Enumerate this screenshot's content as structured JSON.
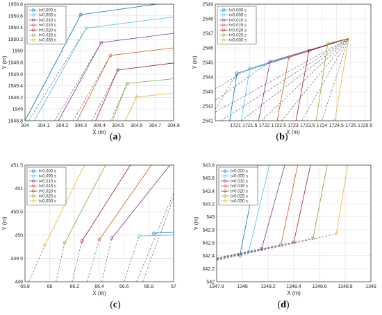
{
  "colors": [
    "#0072BD",
    "#4DBEEE",
    "#7E2F8E",
    "#D95319",
    "#A2142F",
    "#77AC30",
    "#EDB120"
  ],
  "legend": [
    "t=0.000 s",
    "t=0.005 s",
    "t=0.010 s",
    "t=0.015 s",
    "t=0.020 s",
    "t=0.025 s",
    "t=0.030 s"
  ],
  "captions": {
    "a": "a",
    "b": "b",
    "c": "c",
    "d": "d"
  },
  "chart_data": [
    {
      "id": "a",
      "type": "line",
      "title": "",
      "xlabel": "X (m)",
      "ylabel": "Y (m)",
      "xlim": [
        304,
        304.8
      ],
      "ylim": [
        1948.8,
        1950.8
      ],
      "xticks": [
        "304",
        "304.1",
        "304.2",
        "304.3",
        "304.4",
        "304.5",
        "304.6",
        "304.7",
        "304.8"
      ],
      "yticks": [
        "1948.8",
        "1949",
        "1949.2",
        "1949.4",
        "1949.6",
        "1949.8",
        "1950",
        "1950.2",
        "1950.4",
        "1950.6",
        "1950.8"
      ],
      "grid": true,
      "legend_position": "top-left",
      "series": [
        {
          "label": "t=0.000 s",
          "points": [
            [
              304.0,
              1948.8
            ],
            [
              304.3,
              1950.62
            ],
            [
              304.8,
              1950.84
            ]
          ]
        },
        {
          "label": "t=0.005 s",
          "points": [
            [
              304.05,
              1948.8
            ],
            [
              304.33,
              1950.39
            ],
            [
              304.8,
              1950.58
            ]
          ]
        },
        {
          "label": "t=0.010 s",
          "points": [
            [
              304.18,
              1948.8
            ],
            [
              304.41,
              1950.14
            ],
            [
              304.8,
              1950.3
            ]
          ]
        },
        {
          "label": "t=0.015 s",
          "points": [
            [
              304.28,
              1948.8
            ],
            [
              304.46,
              1949.92
            ],
            [
              304.8,
              1950.05
            ]
          ]
        },
        {
          "label": "t=0.020 s",
          "points": [
            [
              304.38,
              1948.8
            ],
            [
              304.5,
              1949.67
            ],
            [
              304.8,
              1949.79
            ]
          ]
        },
        {
          "label": "t=0.025 s",
          "points": [
            [
              304.47,
              1948.8
            ],
            [
              304.55,
              1949.44
            ],
            [
              304.8,
              1949.52
            ]
          ]
        },
        {
          "label": "t=0.030 s",
          "points": [
            [
              304.54,
              1948.8
            ],
            [
              304.6,
              1949.21
            ],
            [
              304.8,
              1949.27
            ]
          ]
        }
      ],
      "dashed": [
        [
          [
            304.0,
            1948.8
          ],
          [
            304.3,
            1950.62
          ]
        ],
        [
          [
            304.02,
            1948.8
          ],
          [
            304.33,
            1950.39
          ]
        ],
        [
          [
            304.16,
            1948.8
          ],
          [
            304.41,
            1950.14
          ]
        ],
        [
          [
            304.26,
            1948.8
          ],
          [
            304.46,
            1949.92
          ]
        ],
        [
          [
            304.36,
            1948.8
          ],
          [
            304.5,
            1949.67
          ]
        ],
        [
          [
            304.46,
            1948.8
          ],
          [
            304.55,
            1949.44
          ]
        ],
        [
          [
            304.54,
            1948.8
          ],
          [
            304.6,
            1949.21
          ]
        ]
      ]
    },
    {
      "id": "b",
      "type": "line",
      "title": "",
      "xlabel": "X (m)",
      "ylabel": "Y (m)",
      "xlim": [
        1720.3,
        1725.7
      ],
      "ylim": [
        2541,
        2549
      ],
      "xticks": [
        "1721",
        "1721.5",
        "1722",
        "1722.5",
        "1723",
        "1723.5",
        "1724",
        "1724.5",
        "1725",
        "1725.5"
      ],
      "yticks": [
        "2541",
        "2542",
        "2543",
        "2544",
        "2545",
        "2546",
        "2547",
        "2548",
        "2549"
      ],
      "grid": true,
      "legend_position": "top-left",
      "series": [
        {
          "label": "t=0.000 s",
          "points": [
            [
              1720.8,
              2541.0
            ],
            [
              1721.05,
              2544.25
            ],
            [
              1724.93,
              2546.65
            ]
          ]
        },
        {
          "label": "t=0.005 s",
          "points": [
            [
              1721.2,
              2541.0
            ],
            [
              1721.5,
              2544.6
            ],
            [
              1724.93,
              2546.65
            ]
          ]
        },
        {
          "label": "t=0.010 s",
          "points": [
            [
              1721.8,
              2541.0
            ],
            [
              1722.2,
              2545.05
            ],
            [
              1724.93,
              2546.65
            ]
          ]
        },
        {
          "label": "t=0.015 s",
          "points": [
            [
              1722.45,
              2541.0
            ],
            [
              1722.85,
              2545.35
            ],
            [
              1724.93,
              2546.65
            ]
          ]
        },
        {
          "label": "t=0.020 s",
          "points": [
            [
              1723.1,
              2541.0
            ],
            [
              1723.55,
              2545.8
            ],
            [
              1724.93,
              2546.65
            ]
          ]
        },
        {
          "label": "t=0.025 s",
          "points": [
            [
              1723.8,
              2541.0
            ],
            [
              1724.2,
              2546.3
            ],
            [
              1724.93,
              2546.65
            ]
          ]
        },
        {
          "label": "t=0.030 s",
          "points": [
            [
              1724.45,
              2541.0
            ],
            [
              1724.93,
              2546.65
            ]
          ]
        }
      ],
      "dashed": [
        [
          [
            1720.3,
            2541.8
          ],
          [
            1721.05,
            2544.25
          ]
        ],
        [
          [
            1720.3,
            2541.6
          ],
          [
            1724.93,
            2546.65
          ]
        ],
        [
          [
            1720.5,
            2541.0
          ],
          [
            1724.93,
            2546.65
          ]
        ],
        [
          [
            1721.2,
            2541.0
          ],
          [
            1724.93,
            2546.65
          ]
        ],
        [
          [
            1721.9,
            2541.0
          ],
          [
            1724.93,
            2546.65
          ]
        ],
        [
          [
            1722.6,
            2541.0
          ],
          [
            1724.93,
            2546.65
          ]
        ],
        [
          [
            1723.3,
            2541.0
          ],
          [
            1724.93,
            2546.65
          ]
        ],
        [
          [
            1724.0,
            2541.0
          ],
          [
            1724.93,
            2546.65
          ]
        ],
        [
          [
            1720.3,
            2542.4
          ],
          [
            1722.2,
            2545.05
          ]
        ],
        [
          [
            1720.3,
            2543.2
          ],
          [
            1721.5,
            2544.6
          ]
        ]
      ]
    },
    {
      "id": "c",
      "type": "line",
      "title": "",
      "xlabel": "X (m)",
      "ylabel": "Y (m)",
      "xlim": [
        65.8,
        67
      ],
      "ylim": [
        449,
        451.5
      ],
      "xticks": [
        "65.8",
        "66",
        "66.2",
        "66.4",
        "66.6",
        "66.8",
        "67"
      ],
      "yticks": [
        "449",
        "449.5",
        "450",
        "450.5",
        "451",
        "451.5"
      ],
      "grid": true,
      "legend_position": "top-left",
      "series": [
        {
          "label": "t=0.000 s",
          "points": [
            [
              66.84,
              450.04
            ],
            [
              67.0,
              450.06
            ]
          ]
        },
        {
          "label": "t=0.005 s",
          "points": [
            [
              66.72,
              449.98
            ],
            [
              67.0,
              450.0
            ]
          ]
        },
        {
          "label": "t=0.010 s",
          "points": [
            [
              66.5,
              449.93
            ],
            [
              66.97,
              451.5
            ]
          ]
        },
        {
          "label": "t=0.015 s",
          "points": [
            [
              66.4,
              449.9
            ],
            [
              66.82,
              451.5
            ]
          ]
        },
        {
          "label": "t=0.020 s",
          "points": [
            [
              66.26,
              449.87
            ],
            [
              66.65,
              451.5
            ]
          ]
        },
        {
          "label": "t=0.025 s",
          "points": [
            [
              66.12,
              449.83
            ],
            [
              66.45,
              451.5
            ]
          ]
        },
        {
          "label": "t=0.030 s",
          "points": [
            [
              65.96,
              449.78
            ],
            [
              66.28,
              451.5
            ]
          ]
        }
      ],
      "dashed": [
        [
          [
            65.83,
            449.0
          ],
          [
            65.96,
            449.78
          ]
        ],
        [
          [
            66.05,
            449.0
          ],
          [
            66.12,
            449.83
          ]
        ],
        [
          [
            66.18,
            449.0
          ],
          [
            66.26,
            449.87
          ]
        ],
        [
          [
            66.3,
            449.0
          ],
          [
            66.4,
            449.9
          ]
        ],
        [
          [
            66.42,
            449.0
          ],
          [
            66.5,
            449.93
          ]
        ],
        [
          [
            66.6,
            449.0
          ],
          [
            66.72,
            449.98
          ]
        ],
        [
          [
            66.7,
            449.0
          ],
          [
            67.0,
            450.9
          ]
        ],
        [
          [
            66.75,
            449.0
          ],
          [
            67.0,
            450.8
          ]
        ]
      ]
    },
    {
      "id": "d",
      "type": "line",
      "title": "",
      "xlabel": "X (m)",
      "ylabel": "Y (m)",
      "xlim": [
        1347.8,
        1349
      ],
      "ylim": [
        542,
        543.8
      ],
      "xticks": [
        "1347.8",
        "1348",
        "1348.2",
        "1348.4",
        "1348.6",
        "1348.8",
        "1349"
      ],
      "yticks": [
        "542",
        "542.2",
        "542.4",
        "542.6",
        "542.8",
        "543",
        "543.2",
        "543.4",
        "543.6",
        "543.8"
      ],
      "grid": true,
      "legend_position": "top-left",
      "series": [
        {
          "label": "t=0.000 s",
          "points": [
            [
              1347.98,
              542.4
            ],
            [
              1348.12,
              543.8
            ]
          ]
        },
        {
          "label": "t=0.005 s",
          "points": [
            [
              1348.05,
              542.47
            ],
            [
              1348.21,
              543.8
            ]
          ]
        },
        {
          "label": "t=0.010 s",
          "points": [
            [
              1348.15,
              542.51
            ],
            [
              1348.33,
              543.8
            ]
          ]
        },
        {
          "label": "t=0.015 s",
          "points": [
            [
              1348.3,
              542.57
            ],
            [
              1348.43,
              543.8
            ]
          ]
        },
        {
          "label": "t=0.020 s",
          "points": [
            [
              1348.4,
              542.61
            ],
            [
              1348.53,
              543.8
            ]
          ]
        },
        {
          "label": "t=0.025 s",
          "points": [
            [
              1348.55,
              542.67
            ],
            [
              1348.66,
              543.8
            ]
          ]
        },
        {
          "label": "t=0.030 s",
          "points": [
            [
              1348.73,
              542.74
            ],
            [
              1348.82,
              543.8
            ]
          ]
        }
      ],
      "dashed": [
        [
          [
            1347.8,
            542.33
          ],
          [
            1348.73,
            542.74
          ]
        ],
        [
          [
            1347.8,
            542.34
          ],
          [
            1348.55,
            542.67
          ]
        ],
        [
          [
            1347.8,
            542.35
          ],
          [
            1348.4,
            542.61
          ]
        ],
        [
          [
            1347.8,
            542.36
          ],
          [
            1348.3,
            542.57
          ]
        ],
        [
          [
            1347.8,
            542.37
          ],
          [
            1348.15,
            542.51
          ]
        ]
      ]
    }
  ]
}
